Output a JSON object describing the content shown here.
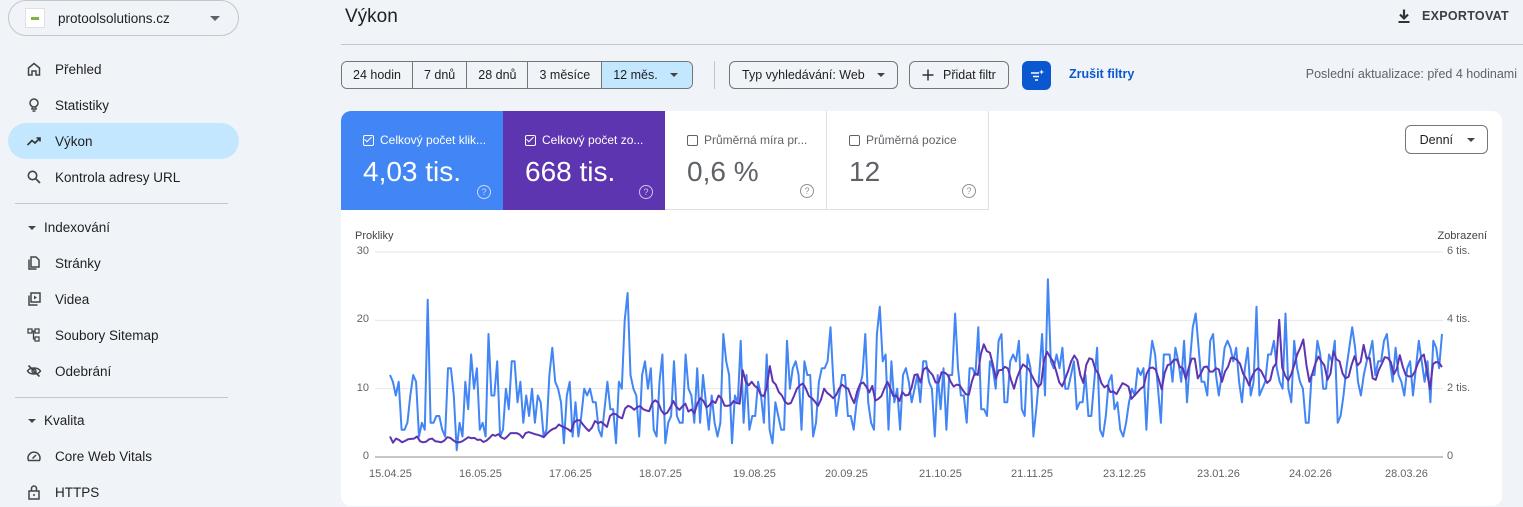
{
  "sidebar": {
    "property": "protoolsolutions.cz",
    "items": [
      {
        "label": "Přehled",
        "icon": "home-icon"
      },
      {
        "label": "Statistiky",
        "icon": "lightbulb-icon"
      },
      {
        "label": "Výkon",
        "icon": "trending-up-icon",
        "active": true
      },
      {
        "label": "Kontrola adresy URL",
        "icon": "search-icon"
      }
    ],
    "sections": [
      {
        "title": "Indexování",
        "items": [
          {
            "label": "Stránky",
            "icon": "pages-icon"
          },
          {
            "label": "Videa",
            "icon": "video-icon"
          },
          {
            "label": "Soubory Sitemap",
            "icon": "sitemap-icon"
          },
          {
            "label": "Odebrání",
            "icon": "eye-off-icon"
          }
        ]
      },
      {
        "title": "Kvalita",
        "items": [
          {
            "label": "Core Web Vitals",
            "icon": "gauge-icon"
          },
          {
            "label": "HTTPS",
            "icon": "lock-icon"
          }
        ]
      }
    ]
  },
  "header": {
    "title": "Výkon",
    "export_label": "EXPORTOVAT"
  },
  "toolbar": {
    "ranges": [
      "24 hodin",
      "7 dnů",
      "28 dnů",
      "3 měsíce",
      "12 měs."
    ],
    "selected_range": "12 měs.",
    "search_type": "Typ vyhledávání: Web",
    "add_filter": "Přidat filtr",
    "clear_filters": "Zrušit filtry",
    "last_update": "Poslední aktualizace: před 4 hodinami"
  },
  "metrics": [
    {
      "label": "Celkový počet klik...",
      "value": "4,03 tis.",
      "checked": true,
      "color": "#4285f4"
    },
    {
      "label": "Celkový počet zo...",
      "value": "668 tis.",
      "checked": true,
      "color": "#5e35b1"
    },
    {
      "label": "Průměrná míra pr...",
      "value": "0,6 %",
      "checked": false
    },
    {
      "label": "Průměrná pozice",
      "value": "12",
      "checked": false
    }
  ],
  "granularity": "Denní",
  "chart_data": {
    "type": "line",
    "title": "",
    "xlabel": "",
    "ylabel": "Prokliky",
    "ylabel_right": "Zobrazení",
    "ylim": [
      0,
      30
    ],
    "ylim_right": [
      0,
      6000
    ],
    "y_ticks": [
      "0",
      "10",
      "20",
      "30"
    ],
    "y_ticks_right": [
      "0",
      "2 tis.",
      "4 tis.",
      "6 tis."
    ],
    "x_ticks": [
      "15.04.25",
      "16.05.25",
      "17.06.25",
      "18.07.25",
      "19.08.25",
      "20.09.25",
      "21.10.25",
      "21.11.25",
      "23.12.25",
      "23.01.26",
      "24.02.26",
      "28.03.26"
    ],
    "grid": true,
    "series": [
      {
        "name": "Prokliky",
        "axis": "left",
        "color": "#4285f4",
        "values": [
          12,
          11,
          9,
          11,
          4,
          4,
          5,
          9,
          12,
          11,
          3,
          5,
          4,
          23,
          5,
          5,
          6,
          6,
          4,
          3,
          13,
          13,
          9,
          1,
          5,
          3,
          11,
          7,
          15,
          10,
          13,
          4,
          5,
          3,
          18,
          9,
          9,
          14,
          3,
          4,
          10,
          7,
          14,
          14,
          8,
          11,
          5,
          9,
          6,
          10,
          5,
          9,
          8,
          3,
          4,
          12,
          16,
          11,
          10,
          8,
          2,
          9,
          11,
          3,
          8,
          3,
          6,
          10,
          9,
          10,
          8,
          8,
          4,
          3,
          7,
          11,
          7,
          7,
          2,
          11,
          10,
          20,
          24,
          12,
          10,
          9,
          3,
          12,
          14,
          10,
          13,
          4,
          3,
          11,
          15,
          2,
          5,
          6,
          14,
          6,
          5,
          5,
          15,
          10,
          9,
          5,
          13,
          5,
          12,
          8,
          4,
          9,
          5,
          3,
          5,
          18,
          14,
          12,
          2,
          9,
          8,
          17,
          5,
          12,
          4,
          6,
          6,
          11,
          9,
          5,
          15,
          4,
          2,
          8,
          6,
          4,
          4,
          17,
          10,
          13,
          14,
          12,
          4,
          14,
          12,
          12,
          3,
          5,
          11,
          13,
          13,
          14,
          19,
          11,
          6,
          9,
          12,
          12,
          6,
          6,
          4,
          8,
          10,
          12,
          18,
          8,
          5,
          4,
          18,
          22,
          14,
          15,
          4,
          14,
          8,
          10,
          4,
          12,
          13,
          11,
          8,
          10,
          12,
          8,
          14,
          14,
          11,
          10,
          3,
          12,
          7,
          13,
          4,
          12,
          12,
          21,
          13,
          9,
          9,
          5,
          13,
          13,
          12,
          19,
          7,
          7,
          6,
          14,
          13,
          10,
          17,
          18,
          8,
          8,
          14,
          15,
          14,
          17,
          7,
          6,
          15,
          13,
          3,
          7,
          12,
          18,
          9,
          26,
          14,
          13,
          15,
          13,
          16,
          10,
          10,
          12,
          14,
          7,
          8,
          8,
          12,
          6,
          6,
          11,
          16,
          4,
          3,
          6,
          11,
          12,
          7,
          8,
          4,
          3,
          5,
          8,
          10,
          9,
          13,
          12,
          13,
          4,
          13,
          17,
          15,
          10,
          5,
          15,
          15,
          15,
          11,
          16,
          14,
          11,
          17,
          8,
          14,
          19,
          21,
          16,
          11,
          11,
          9,
          17,
          18,
          12,
          9,
          12,
          16,
          17,
          16,
          14,
          16,
          11,
          8,
          13,
          16,
          9,
          11,
          22,
          9,
          10,
          11,
          15,
          15,
          17,
          13,
          11,
          10,
          21,
          10,
          8,
          17,
          13,
          11,
          10,
          5,
          5,
          12,
          12,
          17,
          15,
          10,
          10,
          15,
          14,
          17,
          5,
          6,
          9,
          13,
          16,
          19,
          16,
          11,
          9,
          12,
          14,
          15,
          17,
          12,
          14,
          14,
          17,
          18,
          14,
          11,
          16,
          12,
          11,
          9,
          13,
          14,
          9,
          13,
          17,
          14,
          11,
          14,
          8,
          17,
          16,
          13,
          18
        ]
      },
      {
        "name": "Zobrazení",
        "axis": "right",
        "color": "#5e35b1",
        "values": [
          600,
          420,
          540,
          500,
          430,
          470,
          520,
          530,
          540,
          600,
          460,
          430,
          450,
          520,
          540,
          460,
          450,
          430,
          480,
          580,
          560,
          490,
          430,
          430,
          460,
          520,
          580,
          550,
          560,
          500,
          510,
          440,
          480,
          560,
          650,
          620,
          670,
          570,
          530,
          610,
          700,
          700,
          700,
          660,
          560,
          700,
          730,
          700,
          670,
          650,
          620,
          580,
          680,
          760,
          820,
          850,
          950,
          900,
          860,
          820,
          750,
          1000,
          1080,
          1070,
          950,
          850,
          760,
          860,
          1050,
          990,
          1030,
          960,
          880,
          1200,
          1270,
          1250,
          1170,
          1130,
          1420,
          1500,
          1460,
          1380,
          1460,
          1490,
          1400,
          1360,
          1340,
          1580,
          1660,
          1590,
          1360,
          1250,
          1300,
          1450,
          1640,
          1470,
          1380,
          1480,
          1560,
          1330,
          1390,
          1280,
          1580,
          1720,
          1640,
          1450,
          1520,
          1640,
          1580,
          1800,
          1710,
          1500,
          1500,
          1520,
          1640,
          1580,
          1560,
          2540,
          2200,
          2100,
          2200,
          2080,
          2020,
          1820,
          1780,
          2040,
          2660,
          2210,
          2120,
          1900,
          1800,
          1620,
          1550,
          1580,
          1780,
          2000,
          2100,
          2150,
          1990,
          1780,
          1720,
          1620,
          1500,
          1680,
          2000,
          1880,
          1810,
          1720,
          1810,
          2000,
          2120,
          2040,
          2000,
          1760,
          1580,
          1920,
          2140,
          2180,
          2060,
          1890,
          2080,
          1650,
          1700,
          1780,
          2000,
          2200,
          2000,
          1780,
          1800,
          1640,
          1900,
          1800,
          1820,
          2020,
          2400,
          2420,
          2180,
          2560,
          2620,
          2500,
          2400,
          2180,
          2180,
          2480,
          2470,
          2400,
          2200,
          2060,
          2120,
          2100,
          1960,
          1840,
          1820,
          2200,
          2460,
          2400,
          3000,
          3300,
          3100,
          3050,
          2700,
          2300,
          2540,
          2550,
          2640,
          2590,
          2260,
          2000,
          2320,
          2540,
          2710,
          2640,
          2560,
          2370,
          2200,
          2040,
          2140,
          2840,
          3080,
          2920,
          2790,
          2510,
          2190,
          2070,
          2290,
          2520,
          2800,
          2970,
          2840,
          2400,
          2170,
          2700,
          2890,
          2860,
          2560,
          2440,
          2160,
          2040,
          2100,
          1900,
          1920,
          1840,
          2000,
          2160,
          2120,
          2060,
          1700,
          1800,
          1900,
          2000,
          2060,
          2440,
          2600,
          2620,
          2560,
          2280,
          1980,
          2460,
          2690,
          2720,
          2840,
          2860,
          2640,
          2600,
          2280,
          2620,
          2880,
          2880,
          2300,
          2450,
          2630,
          2650,
          2500,
          2500,
          2600,
          2560,
          2200,
          2500,
          2640,
          2900,
          2900,
          2840,
          2730,
          2440,
          2300,
          2100,
          2360,
          2530,
          2600,
          2520,
          2340,
          2170,
          2250,
          2620,
          2740,
          4020,
          2620,
          2370,
          2240,
          2430,
          2700,
          3010,
          3200,
          3440,
          2700,
          2200,
          2450,
          2740,
          2940,
          2800,
          2680,
          2260,
          2440,
          3090,
          2860,
          2800,
          2450,
          2300,
          2350,
          2700,
          2950,
          2680,
          2780,
          3280,
          2880,
          2900,
          2300,
          2260,
          2540,
          2720,
          2920,
          2900,
          2780,
          2420,
          2580,
          2980,
          2640,
          2400,
          2360,
          2360,
          2500,
          2740,
          2920,
          3000,
          2500,
          1990,
          2720,
          2780,
          2760,
          2630
        ]
      }
    ]
  }
}
